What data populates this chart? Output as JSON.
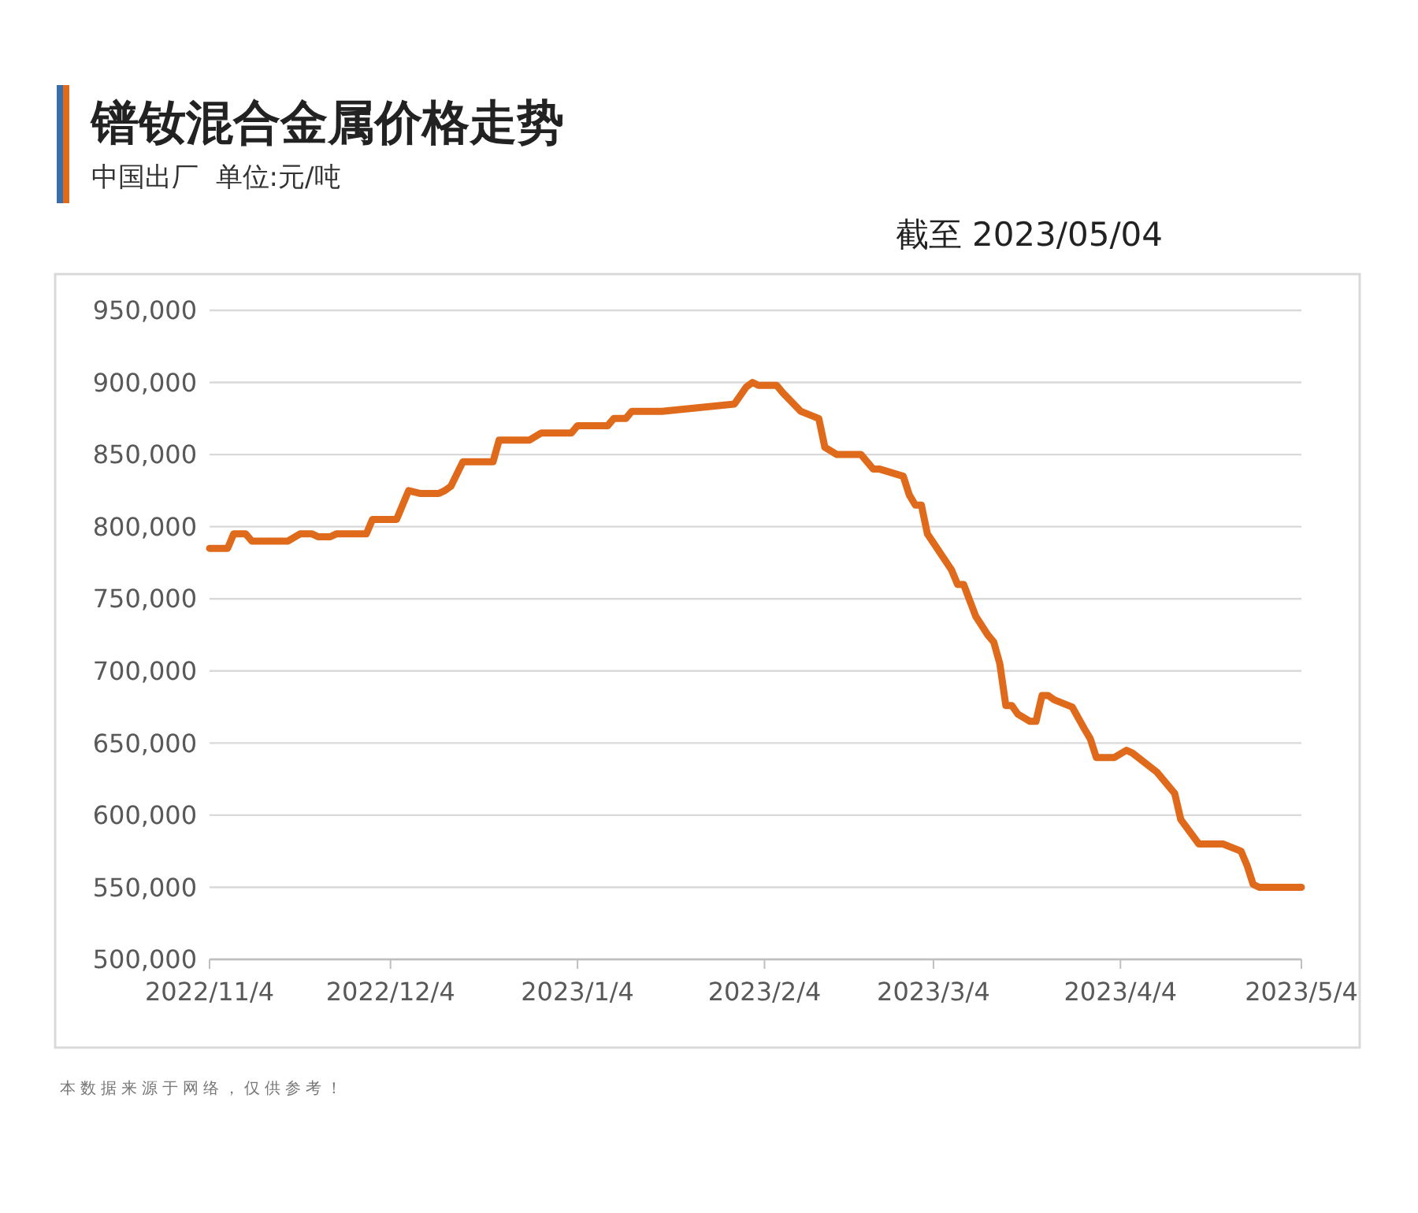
{
  "chart_data": {
    "type": "line",
    "title": "镨钕混合金属价格走势",
    "subtitle": "中国出厂  单位:元/吨",
    "annotations": [
      "截至 2023/05/04",
      "本数据来源于网络，仅供参考！"
    ],
    "x": [
      "2022-11-04",
      "2022-11-07",
      "2022-11-08",
      "2022-11-10",
      "2022-11-11",
      "2022-11-17",
      "2022-11-19",
      "2022-11-21",
      "2022-11-22",
      "2022-11-24",
      "2022-11-25",
      "2022-11-30",
      "2022-12-01",
      "2022-12-05",
      "2022-12-07",
      "2022-12-09",
      "2022-12-12",
      "2022-12-13",
      "2022-12-14",
      "2022-12-16",
      "2022-12-21",
      "2022-12-22",
      "2022-12-27",
      "2022-12-29",
      "2023-01-03",
      "2023-01-04",
      "2023-01-09",
      "2023-01-10",
      "2023-01-12",
      "2023-01-13",
      "2023-01-18",
      "2023-01-30",
      "2023-02-01",
      "2023-02-02",
      "2023-02-03",
      "2023-02-06",
      "2023-02-07",
      "2023-02-10",
      "2023-02-13",
      "2023-02-14",
      "2023-02-16",
      "2023-02-20",
      "2023-02-22",
      "2023-02-23",
      "2023-02-27",
      "2023-02-28",
      "2023-03-01",
      "2023-03-02",
      "2023-03-03",
      "2023-03-07",
      "2023-03-08",
      "2023-03-09",
      "2023-03-11",
      "2023-03-13",
      "2023-03-14",
      "2023-03-15",
      "2023-03-16",
      "2023-03-17",
      "2023-03-18",
      "2023-03-20",
      "2023-03-21",
      "2023-03-22",
      "2023-03-23",
      "2023-03-24",
      "2023-03-27",
      "2023-03-29",
      "2023-03-30",
      "2023-03-31",
      "2023-04-03",
      "2023-04-05",
      "2023-04-06",
      "2023-04-10",
      "2023-04-13",
      "2023-04-14",
      "2023-04-17",
      "2023-04-21",
      "2023-04-24",
      "2023-04-25",
      "2023-04-26",
      "2023-04-27",
      "2023-05-04"
    ],
    "series": [
      {
        "color": "#e06a1b",
        "values": [
          785000,
          785000,
          795000,
          795000,
          790000,
          790000,
          795000,
          795000,
          793000,
          793000,
          795000,
          795000,
          805000,
          805000,
          825000,
          823000,
          823000,
          825000,
          828000,
          845000,
          845000,
          860000,
          860000,
          865000,
          865000,
          870000,
          870000,
          875000,
          875000,
          880000,
          880000,
          885000,
          897000,
          900000,
          898000,
          898000,
          893000,
          880000,
          875000,
          855000,
          850000,
          850000,
          840000,
          840000,
          835000,
          822000,
          815000,
          815000,
          795000,
          770000,
          760000,
          760000,
          738000,
          725000,
          720000,
          705000,
          676000,
          676000,
          670000,
          665000,
          665000,
          683000,
          683000,
          680000,
          675000,
          660000,
          653000,
          640000,
          640000,
          645000,
          643000,
          630000,
          615000,
          597000,
          580000,
          580000,
          575000,
          565000,
          552000,
          550000,
          550000
        ]
      }
    ],
    "xlim": [
      "2022-11-04",
      "2023-05-04"
    ],
    "xticks": [
      {
        "value": "2022-11-04",
        "label": "2022/11/4"
      },
      {
        "value": "2022-12-04",
        "label": "2022/12/4"
      },
      {
        "value": "2023-01-04",
        "label": "2023/1/4"
      },
      {
        "value": "2023-02-04",
        "label": "2023/2/4"
      },
      {
        "value": "2023-03-04",
        "label": "2023/3/4"
      },
      {
        "value": "2023-04-04",
        "label": "2023/4/4"
      },
      {
        "value": "2023-05-04",
        "label": "2023/5/4"
      }
    ],
    "ylim": [
      500000,
      950000
    ],
    "yticks": [
      {
        "value": 500000,
        "label": "500,000"
      },
      {
        "value": 550000,
        "label": "550,000"
      },
      {
        "value": 600000,
        "label": "600,000"
      },
      {
        "value": 650000,
        "label": "650,000"
      },
      {
        "value": 700000,
        "label": "700,000"
      },
      {
        "value": 750000,
        "label": "750,000"
      },
      {
        "value": 800000,
        "label": "800,000"
      },
      {
        "value": 850000,
        "label": "850,000"
      },
      {
        "value": 900000,
        "label": "900,000"
      },
      {
        "value": 950000,
        "label": "950,000"
      }
    ],
    "grid": "y",
    "marker": "none",
    "line_style": "solid"
  }
}
